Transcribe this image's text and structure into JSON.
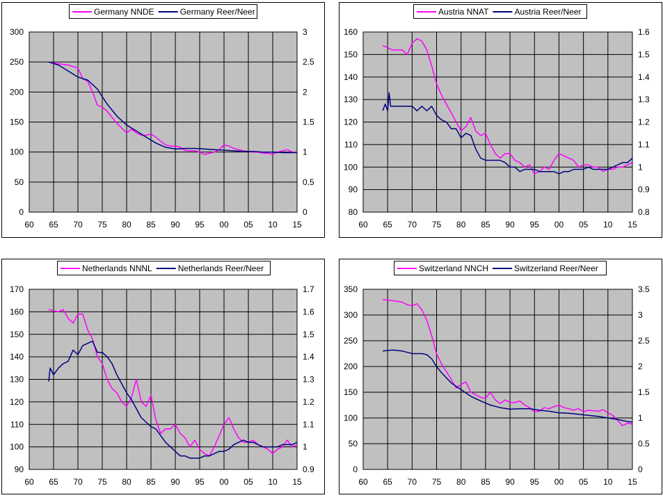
{
  "colors": {
    "plot_bg": "#c0c0c0",
    "left_series": "#ff00ff",
    "right_series": "#000080",
    "grid": "#000000"
  },
  "chart_data": [
    {
      "type": "line",
      "legend": [
        "Germany NNDE",
        "Germany Reer/Neer"
      ],
      "xlim": [
        60,
        115
      ],
      "x_ticks": [
        "60",
        "65",
        "70",
        "75",
        "80",
        "85",
        "90",
        "95",
        "00",
        "05",
        "10",
        "15"
      ],
      "ylim": [
        0,
        300
      ],
      "y_ticks": [
        "0",
        "50",
        "100",
        "150",
        "200",
        "250",
        "300"
      ],
      "y2lim": [
        0,
        3
      ],
      "y2_ticks": [
        "0",
        "0.5",
        "1",
        "1.5",
        "2",
        "2.5",
        "3"
      ],
      "grid": true,
      "legend_position": "top",
      "series": [
        {
          "name": "Germany NNDE",
          "axis": "left",
          "x": [
            64,
            66,
            68,
            70,
            71,
            72,
            73,
            74,
            75,
            76,
            77,
            78,
            79,
            80,
            81,
            82,
            83,
            84,
            85,
            86,
            87,
            88,
            89,
            90,
            91,
            92,
            93,
            94,
            95,
            96,
            97,
            98,
            99,
            100,
            101,
            102,
            103,
            104,
            105,
            106,
            107,
            108,
            109,
            110,
            111,
            112,
            113,
            114,
            115
          ],
          "y": [
            250,
            247,
            245,
            240,
            222,
            218,
            200,
            178,
            175,
            168,
            158,
            148,
            140,
            132,
            138,
            132,
            128,
            128,
            130,
            125,
            118,
            112,
            110,
            110,
            108,
            103,
            102,
            102,
            100,
            96,
            98,
            100,
            104,
            112,
            110,
            106,
            104,
            102,
            101,
            100,
            100,
            98,
            98,
            96,
            100,
            102,
            104,
            100,
            100
          ]
        },
        {
          "name": "Germany Reer/Neer",
          "axis": "right",
          "x": [
            64,
            66,
            68,
            70,
            72,
            74,
            75,
            76,
            78,
            80,
            82,
            84,
            86,
            88,
            90,
            92,
            94,
            96,
            98,
            100,
            102,
            104,
            106,
            108,
            110,
            112,
            114,
            115
          ],
          "y": [
            2.5,
            2.45,
            2.35,
            2.25,
            2.2,
            2.05,
            1.92,
            1.8,
            1.6,
            1.45,
            1.35,
            1.25,
            1.15,
            1.08,
            1.05,
            1.06,
            1.06,
            1.05,
            1.04,
            1.03,
            1.02,
            1.01,
            1.01,
            1.0,
            1.0,
            0.99,
            0.99,
            0.99
          ]
        }
      ]
    },
    {
      "type": "line",
      "legend": [
        "Austria NNAT",
        "Austria Reer/Neer"
      ],
      "xlim": [
        60,
        115
      ],
      "x_ticks": [
        "60",
        "65",
        "70",
        "75",
        "80",
        "85",
        "90",
        "95",
        "00",
        "05",
        "10",
        "15"
      ],
      "ylim": [
        80,
        160
      ],
      "y_ticks": [
        "80",
        "90",
        "100",
        "110",
        "120",
        "130",
        "140",
        "150",
        "160"
      ],
      "y2lim": [
        0.8,
        1.6
      ],
      "y2_ticks": [
        "0.8",
        "0.9",
        "1",
        "1.1",
        "1.2",
        "1.3",
        "1.4",
        "1.5",
        "1.6"
      ],
      "grid": true,
      "legend_position": "top",
      "series": [
        {
          "name": "Austria NNAT",
          "axis": "left",
          "x": [
            64,
            65,
            66,
            68,
            69,
            70,
            71,
            72,
            73,
            74,
            75,
            76,
            77,
            78,
            79,
            80,
            81,
            82,
            83,
            84,
            85,
            86,
            87,
            88,
            89,
            90,
            91,
            92,
            93,
            94,
            95,
            96,
            97,
            98,
            99,
            100,
            101,
            102,
            103,
            104,
            105,
            106,
            107,
            108,
            109,
            110,
            111,
            112,
            113,
            114,
            115
          ],
          "y": [
            154,
            153,
            152,
            152,
            150,
            155,
            157,
            156,
            152,
            145,
            137,
            132,
            128,
            124,
            120,
            116,
            118,
            122,
            116,
            114,
            115,
            110,
            106,
            104,
            106,
            106,
            103,
            102,
            100,
            101,
            97,
            98,
            100,
            99,
            103,
            106,
            105,
            104,
            103,
            100,
            101,
            101,
            100,
            100,
            98,
            99,
            99,
            100,
            100,
            101,
            102
          ]
        },
        {
          "name": "Austria Reer/Neer",
          "axis": "right",
          "x": [
            64,
            64.5,
            65,
            65.3,
            65.6,
            66,
            67,
            68,
            69,
            70,
            71,
            72,
            73,
            74,
            75,
            76,
            77,
            78,
            79,
            80,
            81,
            82,
            83,
            84,
            85,
            86,
            87,
            88,
            89,
            90,
            91,
            92,
            93,
            94,
            95,
            96,
            97,
            98,
            99,
            100,
            101,
            102,
            103,
            104,
            105,
            106,
            107,
            108,
            109,
            110,
            111,
            112,
            113,
            114,
            115
          ],
          "y": [
            1.25,
            1.28,
            1.25,
            1.33,
            1.27,
            1.27,
            1.27,
            1.27,
            1.27,
            1.27,
            1.25,
            1.27,
            1.25,
            1.27,
            1.23,
            1.21,
            1.2,
            1.17,
            1.17,
            1.13,
            1.15,
            1.14,
            1.08,
            1.04,
            1.03,
            1.03,
            1.03,
            1.03,
            1.02,
            1.0,
            1.0,
            0.98,
            0.99,
            0.99,
            0.99,
            0.98,
            0.98,
            0.98,
            0.98,
            0.97,
            0.98,
            0.98,
            0.99,
            0.99,
            0.99,
            1.0,
            0.99,
            0.99,
            0.99,
            0.99,
            1.0,
            1.01,
            1.02,
            1.02,
            1.04
          ]
        }
      ]
    },
    {
      "type": "line",
      "legend": [
        "Netherlands NNNL",
        "Netherlands Reer/Neer"
      ],
      "xlim": [
        60,
        115
      ],
      "x_ticks": [
        "60",
        "65",
        "70",
        "75",
        "80",
        "85",
        "90",
        "95",
        "00",
        "05",
        "10",
        "15"
      ],
      "ylim": [
        90,
        170
      ],
      "y_ticks": [
        "90",
        "100",
        "110",
        "120",
        "130",
        "140",
        "150",
        "160",
        "170"
      ],
      "y2lim": [
        0.9,
        1.7
      ],
      "y2_ticks": [
        "0.9",
        "1",
        "1.1",
        "1.2",
        "1.3",
        "1.4",
        "1.5",
        "1.6",
        "1.7"
      ],
      "grid": true,
      "legend_position": "top",
      "series": [
        {
          "name": "Netherlands NNNL",
          "axis": "left",
          "x": [
            64,
            66,
            67,
            68,
            69,
            70,
            71,
            72,
            73,
            74,
            75,
            76,
            77,
            78,
            79,
            80,
            81,
            82,
            83,
            84,
            85,
            86,
            87,
            88,
            89,
            90,
            91,
            92,
            93,
            94,
            95,
            96,
            97,
            98,
            99,
            100,
            101,
            102,
            103,
            104,
            105,
            106,
            107,
            108,
            109,
            110,
            111,
            112,
            113,
            114,
            115
          ],
          "y": [
            161,
            160,
            161,
            157,
            155,
            159,
            159,
            152,
            148,
            140,
            137,
            130,
            126,
            124,
            120,
            118,
            122,
            130,
            120,
            118,
            123,
            112,
            106,
            108,
            108,
            110,
            106,
            104,
            100,
            103,
            99,
            97,
            96,
            100,
            105,
            110,
            113,
            108,
            104,
            102,
            102,
            103,
            101,
            100,
            99,
            97,
            99,
            100,
            103,
            100,
            101
          ]
        },
        {
          "name": "Netherlands Reer/Neer",
          "axis": "right",
          "x": [
            64,
            64.3,
            65,
            66,
            67,
            68,
            69,
            70,
            71,
            72,
            73,
            74,
            75,
            76,
            77,
            78,
            79,
            80,
            81,
            82,
            83,
            84,
            85,
            86,
            87,
            88,
            89,
            90,
            91,
            92,
            93,
            94,
            95,
            96,
            97,
            98,
            99,
            100,
            101,
            102,
            103,
            104,
            105,
            106,
            107,
            108,
            109,
            110,
            111,
            112,
            113,
            114,
            115
          ],
          "y": [
            1.29,
            1.35,
            1.32,
            1.35,
            1.37,
            1.38,
            1.43,
            1.41,
            1.45,
            1.46,
            1.47,
            1.42,
            1.42,
            1.4,
            1.37,
            1.32,
            1.28,
            1.24,
            1.21,
            1.17,
            1.13,
            1.11,
            1.09,
            1.08,
            1.05,
            1.02,
            1.0,
            0.98,
            0.96,
            0.96,
            0.95,
            0.95,
            0.95,
            0.96,
            0.96,
            0.97,
            0.98,
            0.98,
            0.99,
            1.01,
            1.02,
            1.03,
            1.02,
            1.02,
            1.01,
            1.0,
            1.0,
            1.0,
            1.0,
            1.01,
            1.01,
            1.01,
            1.02
          ]
        }
      ]
    },
    {
      "type": "line",
      "legend": [
        "Switzerland NNCH",
        "Switzerland Reer/Neer"
      ],
      "xlim": [
        60,
        115
      ],
      "x_ticks": [
        "60",
        "65",
        "70",
        "75",
        "80",
        "85",
        "90",
        "95",
        "00",
        "05",
        "10",
        "15"
      ],
      "ylim": [
        0,
        350
      ],
      "y_ticks": [
        "0",
        "50",
        "100",
        "150",
        "200",
        "250",
        "300",
        "350"
      ],
      "y2lim": [
        0,
        3.5
      ],
      "y2_ticks": [
        "0",
        "0.5",
        "1",
        "1.5",
        "2",
        "2.5",
        "3",
        "3.5"
      ],
      "grid": true,
      "legend_position": "top",
      "series": [
        {
          "name": "Switzerland NNCH",
          "axis": "left",
          "x": [
            64,
            66,
            68,
            69,
            70,
            71,
            72,
            73,
            74,
            75,
            76,
            77,
            78,
            79,
            80,
            81,
            82,
            83,
            84,
            85,
            86,
            87,
            88,
            89,
            90,
            91,
            92,
            93,
            94,
            95,
            96,
            97,
            98,
            99,
            100,
            101,
            102,
            103,
            104,
            105,
            106,
            107,
            108,
            109,
            110,
            111,
            112,
            113,
            114,
            115
          ],
          "y": [
            330,
            328,
            325,
            320,
            318,
            322,
            310,
            290,
            260,
            225,
            205,
            190,
            175,
            158,
            165,
            170,
            150,
            145,
            140,
            138,
            150,
            135,
            128,
            135,
            130,
            130,
            133,
            125,
            120,
            112,
            113,
            120,
            118,
            122,
            125,
            120,
            118,
            115,
            118,
            112,
            115,
            114,
            113,
            116,
            110,
            105,
            95,
            85,
            90,
            88
          ]
        },
        {
          "name": "Switzerland Reer/Neer",
          "axis": "right",
          "x": [
            64,
            66,
            68,
            70,
            72,
            73,
            74,
            75,
            76,
            78,
            80,
            82,
            84,
            86,
            88,
            90,
            92,
            94,
            96,
            98,
            100,
            102,
            104,
            106,
            108,
            110,
            112,
            114,
            115
          ],
          "y": [
            2.3,
            2.32,
            2.3,
            2.25,
            2.25,
            2.23,
            2.15,
            2.0,
            1.88,
            1.68,
            1.55,
            1.42,
            1.33,
            1.25,
            1.2,
            1.17,
            1.18,
            1.18,
            1.15,
            1.13,
            1.1,
            1.09,
            1.07,
            1.05,
            1.03,
            1.0,
            0.97,
            0.93,
            0.92
          ]
        }
      ]
    }
  ]
}
